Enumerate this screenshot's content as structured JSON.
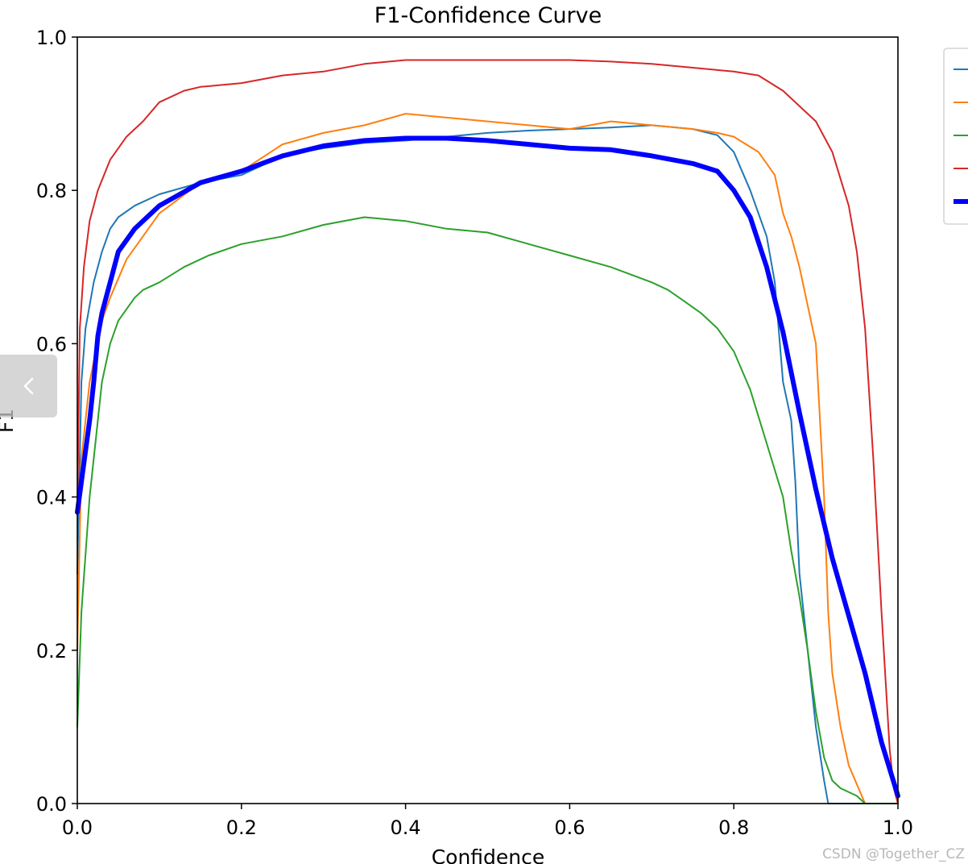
{
  "chart_data": {
    "type": "line",
    "title": "F1-Confidence Curve",
    "xlabel": "Confidence",
    "ylabel": "F1",
    "xlim": [
      0.0,
      1.0
    ],
    "ylim": [
      0.0,
      1.0
    ],
    "xticks": [
      "0.0",
      "0.2",
      "0.4",
      "0.6",
      "0.8",
      "1.0"
    ],
    "yticks": [
      "0.0",
      "0.2",
      "0.4",
      "0.6",
      "0.8",
      "1.0"
    ],
    "grid": false,
    "legend_position": "right, outside plot (partially cropped)",
    "series": [
      {
        "color": "#1f77b4",
        "width": 2,
        "points": [
          [
            0,
            0.3
          ],
          [
            0.005,
            0.55
          ],
          [
            0.01,
            0.62
          ],
          [
            0.02,
            0.68
          ],
          [
            0.03,
            0.72
          ],
          [
            0.04,
            0.75
          ],
          [
            0.05,
            0.765
          ],
          [
            0.07,
            0.78
          ],
          [
            0.1,
            0.795
          ],
          [
            0.15,
            0.81
          ],
          [
            0.2,
            0.82
          ],
          [
            0.25,
            0.845
          ],
          [
            0.3,
            0.855
          ],
          [
            0.35,
            0.862
          ],
          [
            0.4,
            0.865
          ],
          [
            0.45,
            0.87
          ],
          [
            0.5,
            0.875
          ],
          [
            0.55,
            0.878
          ],
          [
            0.6,
            0.88
          ],
          [
            0.65,
            0.882
          ],
          [
            0.7,
            0.885
          ],
          [
            0.75,
            0.88
          ],
          [
            0.78,
            0.872
          ],
          [
            0.8,
            0.85
          ],
          [
            0.82,
            0.8
          ],
          [
            0.84,
            0.74
          ],
          [
            0.85,
            0.68
          ],
          [
            0.86,
            0.55
          ],
          [
            0.87,
            0.5
          ],
          [
            0.875,
            0.42
          ],
          [
            0.88,
            0.3
          ],
          [
            0.89,
            0.2
          ],
          [
            0.9,
            0.1
          ],
          [
            0.91,
            0.03
          ],
          [
            0.915,
            0.0
          ],
          [
            1.0,
            0.0
          ]
        ]
      },
      {
        "color": "#ff7f0e",
        "width": 2,
        "points": [
          [
            0,
            0.2
          ],
          [
            0.005,
            0.45
          ],
          [
            0.015,
            0.55
          ],
          [
            0.03,
            0.63
          ],
          [
            0.04,
            0.66
          ],
          [
            0.06,
            0.71
          ],
          [
            0.08,
            0.74
          ],
          [
            0.1,
            0.77
          ],
          [
            0.15,
            0.81
          ],
          [
            0.2,
            0.825
          ],
          [
            0.25,
            0.86
          ],
          [
            0.3,
            0.875
          ],
          [
            0.35,
            0.885
          ],
          [
            0.4,
            0.9
          ],
          [
            0.45,
            0.895
          ],
          [
            0.5,
            0.89
          ],
          [
            0.55,
            0.885
          ],
          [
            0.6,
            0.88
          ],
          [
            0.65,
            0.89
          ],
          [
            0.7,
            0.885
          ],
          [
            0.75,
            0.88
          ],
          [
            0.78,
            0.875
          ],
          [
            0.8,
            0.87
          ],
          [
            0.83,
            0.85
          ],
          [
            0.85,
            0.82
          ],
          [
            0.86,
            0.77
          ],
          [
            0.87,
            0.74
          ],
          [
            0.88,
            0.7
          ],
          [
            0.89,
            0.65
          ],
          [
            0.9,
            0.6
          ],
          [
            0.905,
            0.5
          ],
          [
            0.91,
            0.4
          ],
          [
            0.915,
            0.25
          ],
          [
            0.92,
            0.17
          ],
          [
            0.93,
            0.1
          ],
          [
            0.94,
            0.05
          ],
          [
            0.95,
            0.025
          ],
          [
            0.96,
            0.0
          ],
          [
            1.0,
            0.0
          ]
        ]
      },
      {
        "color": "#2ca02c",
        "width": 2,
        "points": [
          [
            0,
            0.1
          ],
          [
            0.005,
            0.25
          ],
          [
            0.015,
            0.4
          ],
          [
            0.025,
            0.5
          ],
          [
            0.03,
            0.55
          ],
          [
            0.04,
            0.6
          ],
          [
            0.05,
            0.63
          ],
          [
            0.07,
            0.66
          ],
          [
            0.08,
            0.67
          ],
          [
            0.1,
            0.68
          ],
          [
            0.13,
            0.7
          ],
          [
            0.16,
            0.715
          ],
          [
            0.2,
            0.73
          ],
          [
            0.25,
            0.74
          ],
          [
            0.3,
            0.755
          ],
          [
            0.35,
            0.765
          ],
          [
            0.4,
            0.76
          ],
          [
            0.45,
            0.75
          ],
          [
            0.5,
            0.745
          ],
          [
            0.55,
            0.73
          ],
          [
            0.6,
            0.715
          ],
          [
            0.65,
            0.7
          ],
          [
            0.7,
            0.68
          ],
          [
            0.72,
            0.67
          ],
          [
            0.74,
            0.655
          ],
          [
            0.76,
            0.64
          ],
          [
            0.78,
            0.62
          ],
          [
            0.8,
            0.59
          ],
          [
            0.82,
            0.54
          ],
          [
            0.84,
            0.47
          ],
          [
            0.86,
            0.4
          ],
          [
            0.87,
            0.33
          ],
          [
            0.88,
            0.27
          ],
          [
            0.89,
            0.2
          ],
          [
            0.9,
            0.12
          ],
          [
            0.91,
            0.06
          ],
          [
            0.92,
            0.03
          ],
          [
            0.93,
            0.02
          ],
          [
            0.95,
            0.01
          ],
          [
            0.96,
            0.0
          ],
          [
            1.0,
            0.0
          ]
        ]
      },
      {
        "color": "#d62728",
        "width": 2,
        "points": [
          [
            0,
            0.38
          ],
          [
            0.003,
            0.62
          ],
          [
            0.008,
            0.7
          ],
          [
            0.015,
            0.76
          ],
          [
            0.025,
            0.8
          ],
          [
            0.04,
            0.84
          ],
          [
            0.06,
            0.87
          ],
          [
            0.08,
            0.89
          ],
          [
            0.1,
            0.915
          ],
          [
            0.13,
            0.93
          ],
          [
            0.15,
            0.935
          ],
          [
            0.2,
            0.94
          ],
          [
            0.25,
            0.95
          ],
          [
            0.3,
            0.955
          ],
          [
            0.35,
            0.965
          ],
          [
            0.4,
            0.97
          ],
          [
            0.45,
            0.97
          ],
          [
            0.5,
            0.97
          ],
          [
            0.55,
            0.97
          ],
          [
            0.6,
            0.97
          ],
          [
            0.65,
            0.968
          ],
          [
            0.7,
            0.965
          ],
          [
            0.75,
            0.96
          ],
          [
            0.8,
            0.955
          ],
          [
            0.83,
            0.95
          ],
          [
            0.86,
            0.93
          ],
          [
            0.88,
            0.91
          ],
          [
            0.9,
            0.89
          ],
          [
            0.92,
            0.85
          ],
          [
            0.94,
            0.78
          ],
          [
            0.95,
            0.72
          ],
          [
            0.96,
            0.62
          ],
          [
            0.97,
            0.45
          ],
          [
            0.98,
            0.25
          ],
          [
            0.99,
            0.07
          ],
          [
            0.995,
            0.02
          ],
          [
            1.0,
            0.0
          ]
        ]
      },
      {
        "color": "#0000ff",
        "width": 6,
        "points": [
          [
            0,
            0.38
          ],
          [
            0.005,
            0.42
          ],
          [
            0.01,
            0.46
          ],
          [
            0.015,
            0.5
          ],
          [
            0.02,
            0.55
          ],
          [
            0.025,
            0.61
          ],
          [
            0.03,
            0.64
          ],
          [
            0.04,
            0.68
          ],
          [
            0.05,
            0.72
          ],
          [
            0.07,
            0.75
          ],
          [
            0.1,
            0.78
          ],
          [
            0.15,
            0.81
          ],
          [
            0.2,
            0.825
          ],
          [
            0.25,
            0.845
          ],
          [
            0.3,
            0.858
          ],
          [
            0.35,
            0.865
          ],
          [
            0.4,
            0.868
          ],
          [
            0.45,
            0.868
          ],
          [
            0.5,
            0.865
          ],
          [
            0.55,
            0.86
          ],
          [
            0.6,
            0.855
          ],
          [
            0.65,
            0.853
          ],
          [
            0.7,
            0.845
          ],
          [
            0.75,
            0.835
          ],
          [
            0.78,
            0.825
          ],
          [
            0.8,
            0.8
          ],
          [
            0.82,
            0.765
          ],
          [
            0.84,
            0.7
          ],
          [
            0.86,
            0.615
          ],
          [
            0.88,
            0.51
          ],
          [
            0.9,
            0.41
          ],
          [
            0.92,
            0.32
          ],
          [
            0.94,
            0.245
          ],
          [
            0.96,
            0.17
          ],
          [
            0.98,
            0.08
          ],
          [
            1.0,
            0.01
          ]
        ]
      }
    ]
  },
  "watermark": "CSDN @Together_CZ",
  "nav": {
    "prev_icon": "chevron-left-icon"
  }
}
